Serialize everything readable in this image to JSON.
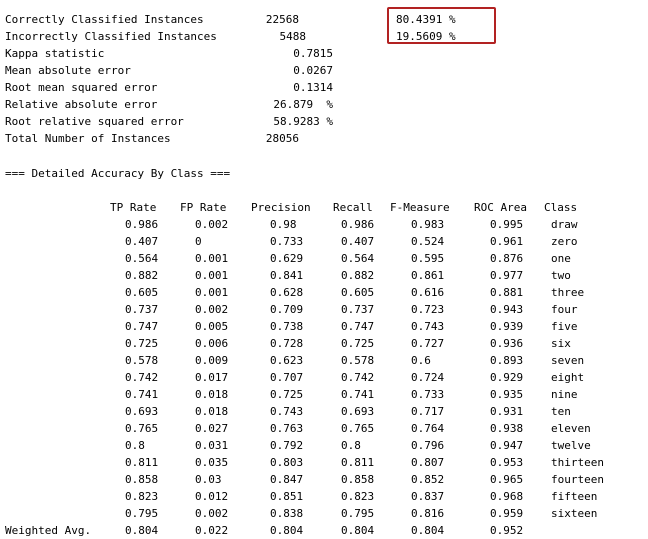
{
  "summary": [
    {
      "label": "Correctly Classified Instances",
      "value": "22568",
      "percent": "80.4391 %"
    },
    {
      "label": "Incorrectly Classified Instances",
      "value": "5488",
      "percent": "19.5609 %"
    },
    {
      "label": "Kappa statistic",
      "value": "0.7815"
    },
    {
      "label": "Mean absolute error",
      "value": "0.0267"
    },
    {
      "label": "Root mean squared error",
      "value": "0.1314"
    },
    {
      "label": "Relative absolute error",
      "value": "26.879  %"
    },
    {
      "label": "Root relative squared error",
      "value": "58.9283 %"
    },
    {
      "label": "Total Number of Instances",
      "value": "28056"
    }
  ],
  "section_title": "=== Detailed Accuracy By Class ===",
  "columns": [
    "TP Rate",
    "FP Rate",
    "Precision",
    "Recall",
    "F-Measure",
    "ROC Area",
    "Class"
  ],
  "rows": [
    [
      "0.986",
      "0.002",
      "0.98",
      "0.986",
      "0.983",
      "0.995",
      "draw"
    ],
    [
      "0.407",
      "0",
      "0.733",
      "0.407",
      "0.524",
      "0.961",
      "zero"
    ],
    [
      "0.564",
      "0.001",
      "0.629",
      "0.564",
      "0.595",
      "0.876",
      "one"
    ],
    [
      "0.882",
      "0.001",
      "0.841",
      "0.882",
      "0.861",
      "0.977",
      "two"
    ],
    [
      "0.605",
      "0.001",
      "0.628",
      "0.605",
      "0.616",
      "0.881",
      "three"
    ],
    [
      "0.737",
      "0.002",
      "0.709",
      "0.737",
      "0.723",
      "0.943",
      "four"
    ],
    [
      "0.747",
      "0.005",
      "0.738",
      "0.747",
      "0.743",
      "0.939",
      "five"
    ],
    [
      "0.725",
      "0.006",
      "0.728",
      "0.725",
      "0.727",
      "0.936",
      "six"
    ],
    [
      "0.578",
      "0.009",
      "0.623",
      "0.578",
      "0.6",
      "0.893",
      "seven"
    ],
    [
      "0.742",
      "0.017",
      "0.707",
      "0.742",
      "0.724",
      "0.929",
      "eight"
    ],
    [
      "0.741",
      "0.018",
      "0.725",
      "0.741",
      "0.733",
      "0.935",
      "nine"
    ],
    [
      "0.693",
      "0.018",
      "0.743",
      "0.693",
      "0.717",
      "0.931",
      "ten"
    ],
    [
      "0.765",
      "0.027",
      "0.763",
      "0.765",
      "0.764",
      "0.938",
      "eleven"
    ],
    [
      "0.8",
      "0.031",
      "0.792",
      "0.8",
      "0.796",
      "0.947",
      "twelve"
    ],
    [
      "0.811",
      "0.035",
      "0.803",
      "0.811",
      "0.807",
      "0.953",
      "thirteen"
    ],
    [
      "0.858",
      "0.03",
      "0.847",
      "0.858",
      "0.852",
      "0.965",
      "fourteen"
    ],
    [
      "0.823",
      "0.012",
      "0.851",
      "0.823",
      "0.837",
      "0.968",
      "fifteen"
    ],
    [
      "0.795",
      "0.002",
      "0.838",
      "0.795",
      "0.816",
      "0.959",
      "sixteen"
    ]
  ],
  "weighted_avg": {
    "label": "Weighted Avg.",
    "values": [
      "0.804",
      "0.022",
      "0.804",
      "0.804",
      "0.804",
      "0.952"
    ]
  },
  "highlight_color": "#b22222"
}
